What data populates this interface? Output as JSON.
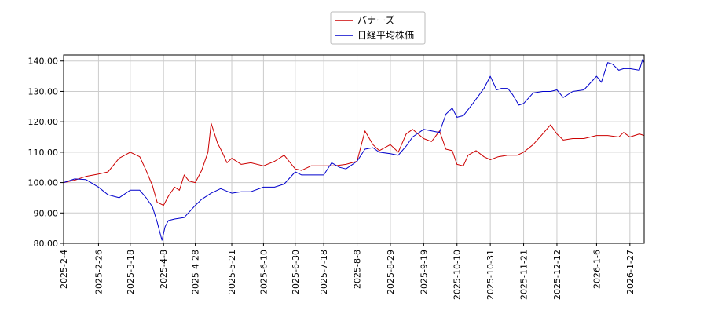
{
  "chart_data": {
    "type": "line",
    "title": "",
    "xlabel": "",
    "ylabel": "",
    "ylim": [
      80,
      142
    ],
    "grid": true,
    "legend_position": "top-center",
    "yticks": [
      "80.00",
      "90.00",
      "100.00",
      "110.00",
      "120.00",
      "130.00",
      "140.00"
    ],
    "xticks": [
      "2025-2-4",
      "2025-2-26",
      "2025-3-18",
      "2025-4-8",
      "2025-4-28",
      "2025-5-21",
      "2025-6-10",
      "2025-6-30",
      "2025-7-18",
      "2025-8-8",
      "2025-8-29",
      "2025-9-19",
      "2025-10-10",
      "2025-10-31",
      "2025-11-21",
      "2025-12-12",
      "2026-1-6",
      "2026-1-27"
    ],
    "series": [
      {
        "name": "バナーズ",
        "color": "#cc0000",
        "points": [
          [
            "2025-2-4",
            100.0
          ],
          [
            "2025-2-11",
            100.8
          ],
          [
            "2025-2-18",
            102.0
          ],
          [
            "2025-2-26",
            102.8
          ],
          [
            "2025-3-4",
            103.5
          ],
          [
            "2025-3-11",
            108.0
          ],
          [
            "2025-3-18",
            110.0
          ],
          [
            "2025-3-24",
            108.5
          ],
          [
            "2025-3-28",
            104.0
          ],
          [
            "2025-4-1",
            99.0
          ],
          [
            "2025-4-4",
            93.5
          ],
          [
            "2025-4-8",
            92.5
          ],
          [
            "2025-4-11",
            95.5
          ],
          [
            "2025-4-15",
            98.5
          ],
          [
            "2025-4-18",
            97.5
          ],
          [
            "2025-4-21",
            102.5
          ],
          [
            "2025-4-24",
            100.5
          ],
          [
            "2025-4-28",
            100.0
          ],
          [
            "2025-5-2",
            104.0
          ],
          [
            "2025-5-6",
            110.0
          ],
          [
            "2025-5-8",
            119.5
          ],
          [
            "2025-5-12",
            113.0
          ],
          [
            "2025-5-15",
            110.0
          ],
          [
            "2025-5-18",
            106.5
          ],
          [
            "2025-5-21",
            108.0
          ],
          [
            "2025-5-27",
            106.0
          ],
          [
            "2025-6-2",
            106.5
          ],
          [
            "2025-6-10",
            105.5
          ],
          [
            "2025-6-17",
            107.0
          ],
          [
            "2025-6-23",
            109.0
          ],
          [
            "2025-6-30",
            104.5
          ],
          [
            "2025-7-4",
            104.0
          ],
          [
            "2025-7-10",
            105.5
          ],
          [
            "2025-7-18",
            105.5
          ],
          [
            "2025-7-25",
            105.5
          ],
          [
            "2025-8-1",
            106.0
          ],
          [
            "2025-8-8",
            107.0
          ],
          [
            "2025-8-13",
            117.0
          ],
          [
            "2025-8-18",
            112.5
          ],
          [
            "2025-8-22",
            110.5
          ],
          [
            "2025-8-29",
            112.5
          ],
          [
            "2025-9-3",
            110.0
          ],
          [
            "2025-9-8",
            116.0
          ],
          [
            "2025-9-12",
            117.5
          ],
          [
            "2025-9-19",
            114.5
          ],
          [
            "2025-9-24",
            113.5
          ],
          [
            "2025-9-29",
            117.0
          ],
          [
            "2025-10-3",
            111.0
          ],
          [
            "2025-10-7",
            110.5
          ],
          [
            "2025-10-10",
            106.0
          ],
          [
            "2025-10-14",
            105.5
          ],
          [
            "2025-10-17",
            109.0
          ],
          [
            "2025-10-22",
            110.5
          ],
          [
            "2025-10-27",
            108.5
          ],
          [
            "2025-10-31",
            107.5
          ],
          [
            "2025-11-5",
            108.5
          ],
          [
            "2025-11-11",
            109.0
          ],
          [
            "2025-11-17",
            109.0
          ],
          [
            "2025-11-21",
            110.0
          ],
          [
            "2025-11-27",
            112.5
          ],
          [
            "2025-12-3",
            116.0
          ],
          [
            "2025-12-8",
            119.0
          ],
          [
            "2025-12-12",
            116.0
          ],
          [
            "2025-12-16",
            114.0
          ],
          [
            "2025-12-22",
            114.5
          ],
          [
            "2025-12-29",
            114.5
          ],
          [
            "2026-1-6",
            115.5
          ],
          [
            "2026-1-13",
            115.5
          ],
          [
            "2026-1-20",
            115.0
          ],
          [
            "2026-1-23",
            116.5
          ],
          [
            "2026-1-27",
            115.0
          ],
          [
            "2026-2-2",
            116.0
          ],
          [
            "2026-2-5",
            115.5
          ]
        ]
      },
      {
        "name": "日経平均株価",
        "color": "#0000cc",
        "points": [
          [
            "2025-2-4",
            100.0
          ],
          [
            "2025-2-11",
            101.2
          ],
          [
            "2025-2-18",
            101.0
          ],
          [
            "2025-2-26",
            98.5
          ],
          [
            "2025-3-4",
            96.0
          ],
          [
            "2025-3-11",
            95.0
          ],
          [
            "2025-3-18",
            97.5
          ],
          [
            "2025-3-24",
            97.5
          ],
          [
            "2025-3-28",
            95.0
          ],
          [
            "2025-4-1",
            92.0
          ],
          [
            "2025-4-4",
            87.0
          ],
          [
            "2025-4-7",
            81.0
          ],
          [
            "2025-4-9",
            85.5
          ],
          [
            "2025-4-11",
            87.5
          ],
          [
            "2025-4-15",
            88.0
          ],
          [
            "2025-4-21",
            88.5
          ],
          [
            "2025-4-28",
            92.5
          ],
          [
            "2025-5-2",
            94.5
          ],
          [
            "2025-5-8",
            96.5
          ],
          [
            "2025-5-14",
            98.0
          ],
          [
            "2025-5-21",
            96.5
          ],
          [
            "2025-5-27",
            97.0
          ],
          [
            "2025-6-2",
            97.0
          ],
          [
            "2025-6-10",
            98.5
          ],
          [
            "2025-6-17",
            98.5
          ],
          [
            "2025-6-23",
            99.5
          ],
          [
            "2025-6-30",
            103.5
          ],
          [
            "2025-7-4",
            102.5
          ],
          [
            "2025-7-10",
            102.5
          ],
          [
            "2025-7-18",
            102.5
          ],
          [
            "2025-7-23",
            106.5
          ],
          [
            "2025-7-28",
            105.0
          ],
          [
            "2025-8-1",
            104.5
          ],
          [
            "2025-8-8",
            107.0
          ],
          [
            "2025-8-13",
            111.0
          ],
          [
            "2025-8-18",
            111.5
          ],
          [
            "2025-8-22",
            110.0
          ],
          [
            "2025-8-29",
            109.5
          ],
          [
            "2025-9-3",
            109.0
          ],
          [
            "2025-9-8",
            112.0
          ],
          [
            "2025-9-12",
            115.0
          ],
          [
            "2025-9-19",
            117.5
          ],
          [
            "2025-9-24",
            117.0
          ],
          [
            "2025-9-29",
            116.5
          ],
          [
            "2025-10-3",
            122.5
          ],
          [
            "2025-10-7",
            124.5
          ],
          [
            "2025-10-10",
            121.5
          ],
          [
            "2025-10-14",
            122.0
          ],
          [
            "2025-10-20",
            126.0
          ],
          [
            "2025-10-27",
            131.0
          ],
          [
            "2025-10-31",
            135.0
          ],
          [
            "2025-11-4",
            130.5
          ],
          [
            "2025-11-7",
            131.0
          ],
          [
            "2025-11-11",
            131.0
          ],
          [
            "2025-11-14",
            129.0
          ],
          [
            "2025-11-18",
            125.5
          ],
          [
            "2025-11-21",
            126.0
          ],
          [
            "2025-11-27",
            129.5
          ],
          [
            "2025-12-3",
            130.0
          ],
          [
            "2025-12-8",
            130.0
          ],
          [
            "2025-12-12",
            130.5
          ],
          [
            "2025-12-16",
            128.0
          ],
          [
            "2025-12-22",
            130.0
          ],
          [
            "2025-12-29",
            130.5
          ],
          [
            "2026-1-6",
            135.0
          ],
          [
            "2026-1-9",
            133.0
          ],
          [
            "2026-1-13",
            139.5
          ],
          [
            "2026-1-16",
            139.0
          ],
          [
            "2026-1-20",
            137.0
          ],
          [
            "2026-1-23",
            137.5
          ],
          [
            "2026-1-27",
            137.5
          ],
          [
            "2026-2-2",
            137.0
          ],
          [
            "2026-2-4",
            140.5
          ],
          [
            "2026-2-5",
            139.5
          ]
        ]
      }
    ]
  }
}
